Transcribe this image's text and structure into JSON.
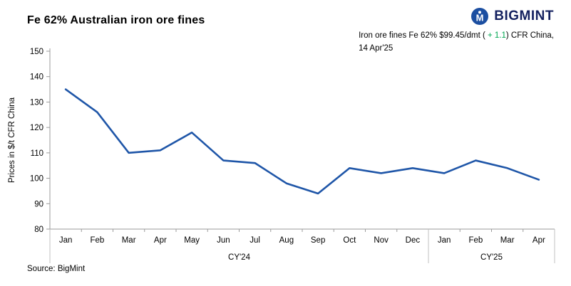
{
  "header": {
    "title": "Fe 62% Australian iron ore fines",
    "logo_text": "BIGMINT"
  },
  "annotation": {
    "line1_prefix": "Iron ore fines Fe 62% $99.45/dmt (",
    "change": " + 1.1",
    "line1_suffix": ") CFR China,",
    "line2": "14 Apr'25"
  },
  "source": "Source: BigMint",
  "colors": {
    "line": "#1f56a8",
    "positive": "#00a651",
    "logo_navy": "#13205f",
    "logo_circle": "#1c4fa1",
    "axis": "#9b9b9b",
    "separator": "#c0c0c0"
  },
  "chart_data": {
    "type": "line",
    "title": "Fe 62% Australian iron ore fines",
    "xlabel": "",
    "ylabel": "Prices in $/t CFR China",
    "ylim": [
      80,
      150
    ],
    "ytick_step": 10,
    "grid": false,
    "legend_position": "none",
    "categories": [
      "Jan",
      "Feb",
      "Mar",
      "Apr",
      "May",
      "Jun",
      "Jul",
      "Aug",
      "Sep",
      "Oct",
      "Nov",
      "Dec",
      "Jan",
      "Feb",
      "Mar",
      "Apr"
    ],
    "group_labels": [
      {
        "label": "CY'24",
        "span": [
          0,
          11
        ]
      },
      {
        "label": "CY'25",
        "span": [
          12,
          15
        ]
      }
    ],
    "series": [
      {
        "name": "Iron ore fines Fe 62% CFR China",
        "color": "#1f56a8",
        "values": [
          135,
          126,
          110,
          111,
          118,
          107,
          106,
          98,
          94,
          104,
          102,
          104,
          102,
          107,
          104,
          99.45
        ]
      }
    ]
  }
}
